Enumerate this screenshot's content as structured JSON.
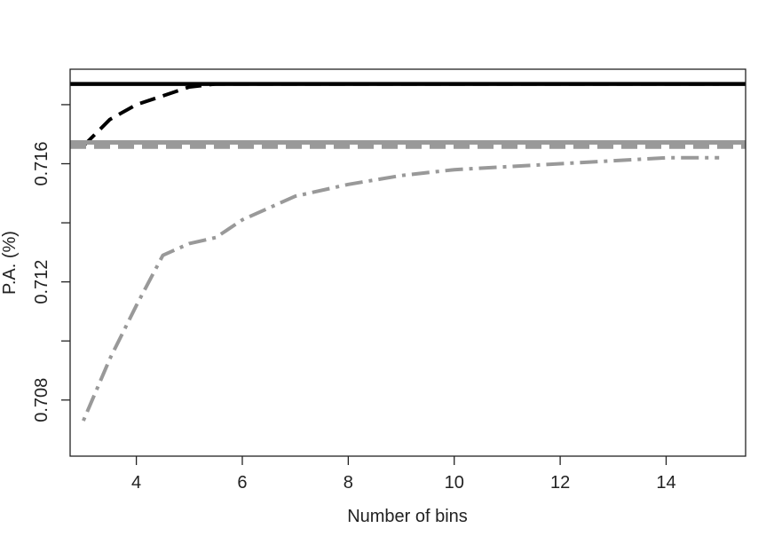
{
  "chart_data": {
    "type": "line",
    "title": "",
    "xlabel": "Number of bins",
    "ylabel": "P.A. (%)",
    "xlim": [
      2.75,
      15.5
    ],
    "ylim": [
      0.7061,
      0.7192
    ],
    "xticks": [
      4,
      6,
      8,
      10,
      12,
      14
    ],
    "xtick_labels": [
      "4",
      "6",
      "8",
      "10",
      "12",
      "14"
    ],
    "yticks": [
      0.708,
      0.71,
      0.712,
      0.714,
      0.716,
      0.718
    ],
    "ytick_labels": [
      "0.708",
      "",
      "0.712",
      "",
      "0.716",
      ""
    ],
    "grid": false,
    "legend": "none",
    "series": [
      {
        "color": "#000000",
        "style": "solid",
        "width": 4.5,
        "x": [
          2.75,
          15.5
        ],
        "y": [
          0.7187,
          0.7187
        ]
      },
      {
        "color": "#000000",
        "style": "dashed",
        "width": 4,
        "x": [
          3,
          3.5,
          4,
          4.5,
          5,
          5.5,
          6,
          7,
          8,
          9,
          10,
          11,
          12,
          13,
          14,
          15
        ],
        "y": [
          0.7166,
          0.7175,
          0.718,
          0.7183,
          0.7186,
          0.7187,
          0.7187,
          0.7187,
          0.7187,
          0.7187,
          0.7187,
          0.7187,
          0.7187,
          0.7187,
          0.7187,
          0.7187
        ]
      },
      {
        "color": "#999999",
        "style": "solid",
        "width": 5,
        "x": [
          2.75,
          15.5
        ],
        "y": [
          0.71672,
          0.71672
        ]
      },
      {
        "color": "#999999",
        "style": "dashed",
        "width": 5,
        "x": [
          2.75,
          15.5
        ],
        "y": [
          0.71658,
          0.71658
        ]
      },
      {
        "color": "#999999",
        "style": "dotdash",
        "width": 4,
        "x": [
          3,
          3.5,
          4,
          4.5,
          5,
          5.5,
          6,
          7,
          8,
          9,
          10,
          11,
          12,
          13,
          14,
          15
        ],
        "y": [
          0.7073,
          0.7094,
          0.7112,
          0.7129,
          0.7133,
          0.7135,
          0.7141,
          0.7149,
          0.7153,
          0.7156,
          0.7158,
          0.7159,
          0.716,
          0.7161,
          0.7162,
          0.7162
        ]
      }
    ]
  }
}
